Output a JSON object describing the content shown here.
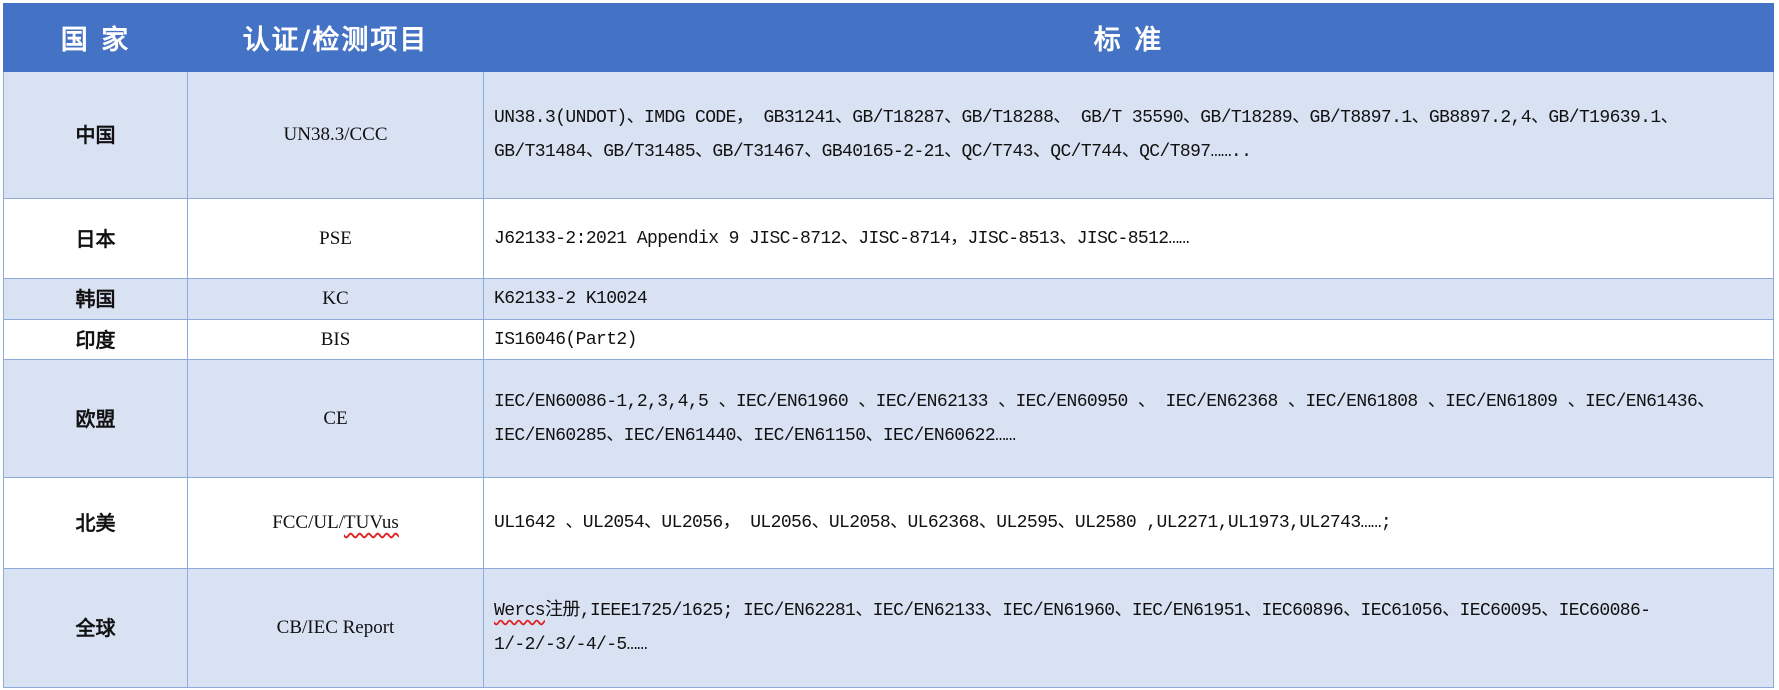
{
  "header": {
    "country": "国 家",
    "cert": "认证/检测项目",
    "standard": "标 准"
  },
  "rows": [
    {
      "country": "中国",
      "cert": "UN38.3/CCC",
      "standard": "UN38.3(UNDOT)、IMDG CODE， GB31241、GB/T18287、GB/T18288、 GB/T 35590、GB/T18289、GB/T8897.1、GB8897.2,4、GB/T19639.1、 GB/T31484、GB/T31485、GB/T31467、GB40165-2-21、QC/T743、QC/T744、QC/T897……..",
      "style": "odd"
    },
    {
      "country": "日本",
      "cert": "PSE",
      "standard": "J62133-2:2021 Appendix 9 JISC-8712、JISC-8714，JISC-8513、JISC-8512……",
      "style": "even"
    },
    {
      "country": "韩国",
      "cert": "KC",
      "standard": "K62133-2 K10024",
      "style": "odd"
    },
    {
      "country": "印度",
      "cert": "BIS",
      "standard": "IS16046(Part2)",
      "style": "even"
    },
    {
      "country": "欧盟",
      "cert": "CE",
      "standard": "IEC/EN60086-1,2,3,4,5 、IEC/EN61960 、IEC/EN62133 、IEC/EN60950 、 IEC/EN62368 、IEC/EN61808 、IEC/EN61809 、IEC/EN61436、IEC/EN60285、IEC/EN61440、IEC/EN61150、IEC/EN60622……",
      "style": "odd"
    },
    {
      "country": "北美",
      "cert_prefix": "FCC/UL/",
      "cert_wavy": "TUVus",
      "standard": "UL1642 、UL2054、UL2056， UL2056、UL2058、UL62368、UL2595、UL2580 ,UL2271,UL1973,UL2743……;",
      "style": "even"
    },
    {
      "country": "全球",
      "cert": "CB/IEC Report",
      "standard_wavy": "Wercs",
      "standard": "注册,IEEE1725/1625; IEC/EN62281、IEC/EN62133、IEC/EN61960、IEC/EN61951、IEC60896、IEC61056、IEC60095、IEC60086-1/-2/-3/-4/-5……",
      "style": "odd"
    }
  ],
  "colors": {
    "header_bg": "#4472c4",
    "band": "#d9e2f3",
    "border": "#8eaadb"
  }
}
